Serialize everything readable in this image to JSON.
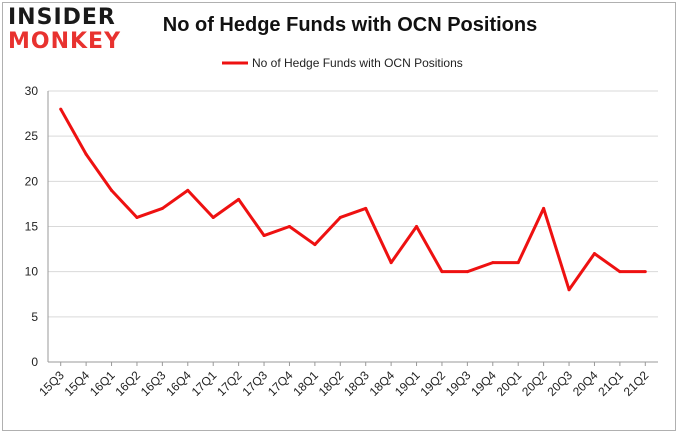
{
  "logo": {
    "line1": "INSIDER",
    "line2": "MONKEY"
  },
  "chart_data": {
    "type": "line",
    "title": "No of Hedge Funds with OCN Positions",
    "xlabel": "",
    "ylabel": "",
    "ylim": [
      0,
      30
    ],
    "yticks": [
      0,
      5,
      10,
      15,
      20,
      25,
      30
    ],
    "grid": true,
    "legend_position": "top-center",
    "categories": [
      "15Q3",
      "15Q4",
      "16Q1",
      "16Q2",
      "16Q3",
      "16Q4",
      "17Q1",
      "17Q2",
      "17Q3",
      "17Q4",
      "18Q1",
      "18Q2",
      "18Q3",
      "18Q4",
      "19Q1",
      "19Q2",
      "19Q3",
      "19Q4",
      "20Q1",
      "20Q2",
      "20Q3",
      "20Q4",
      "21Q1",
      "21Q2"
    ],
    "series": [
      {
        "name": "No of Hedge Funds with OCN Positions",
        "color": "#ee1111",
        "values": [
          28,
          23,
          19,
          16,
          17,
          19,
          16,
          18,
          14,
          15,
          13,
          16,
          17,
          11,
          15,
          10,
          10,
          11,
          11,
          17,
          8,
          12,
          10,
          10
        ]
      }
    ]
  }
}
